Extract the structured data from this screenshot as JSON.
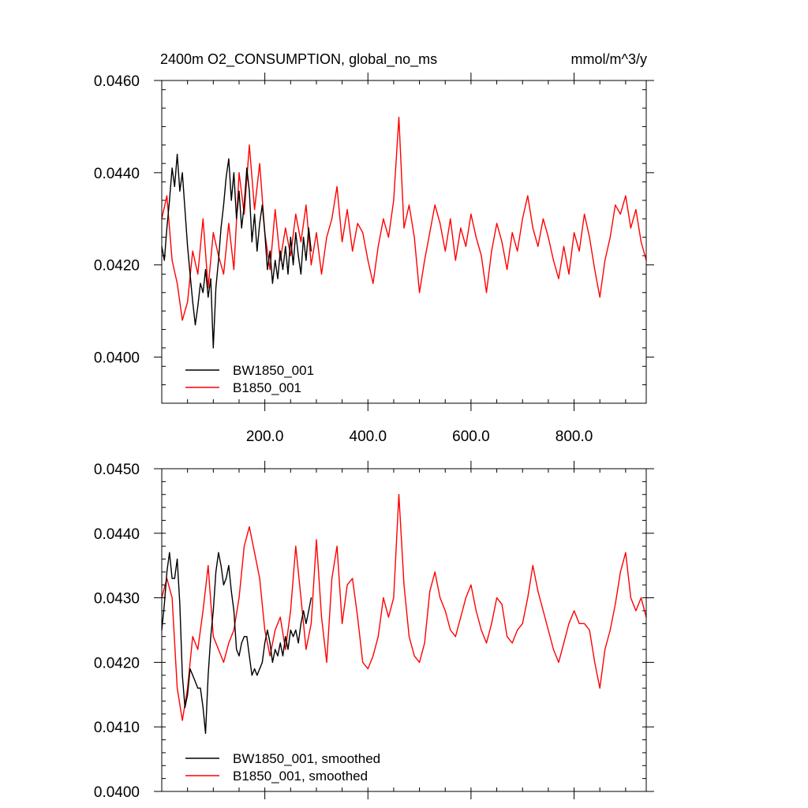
{
  "chart_data": [
    {
      "type": "line",
      "title": "2400m O2_CONSUMPTION, global_no_ms",
      "units": "mmol/m^3/y",
      "xlim": [
        0,
        940
      ],
      "ylim": [
        0.039,
        0.046
      ],
      "x_ticks": [
        "200.0",
        "400.0",
        "600.0",
        "800.0"
      ],
      "x_tick_values": [
        200,
        400,
        600,
        800
      ],
      "y_ticks": [
        "0.0400",
        "0.0420",
        "0.0440",
        "0.0460"
      ],
      "y_tick_values": [
        0.04,
        0.042,
        0.044,
        0.046
      ],
      "legend_position": "bottom-left",
      "grid": false,
      "series": [
        {
          "name": "BW1850_001",
          "color": "#000000",
          "x": [
            0,
            5,
            10,
            15,
            20,
            25,
            30,
            35,
            40,
            45,
            50,
            55,
            60,
            65,
            70,
            75,
            80,
            85,
            90,
            95,
            100,
            105,
            110,
            115,
            120,
            125,
            130,
            135,
            140,
            145,
            150,
            155,
            160,
            165,
            170,
            175,
            180,
            185,
            190,
            195,
            200,
            205,
            210,
            215,
            220,
            225,
            230,
            235,
            240,
            245,
            250,
            255,
            260,
            265,
            270,
            275,
            280,
            285,
            290
          ],
          "values": [
            0.0424,
            0.0421,
            0.0428,
            0.0434,
            0.0441,
            0.0437,
            0.0444,
            0.0436,
            0.044,
            0.0432,
            0.0424,
            0.0418,
            0.0412,
            0.0407,
            0.0411,
            0.0416,
            0.0414,
            0.0419,
            0.0413,
            0.0417,
            0.0402,
            0.0415,
            0.0421,
            0.0428,
            0.0433,
            0.0439,
            0.0443,
            0.0434,
            0.044,
            0.043,
            0.0436,
            0.0428,
            0.0433,
            0.0441,
            0.0436,
            0.0425,
            0.0431,
            0.0423,
            0.0429,
            0.0433,
            0.0427,
            0.0419,
            0.0423,
            0.0416,
            0.0421,
            0.0417,
            0.0423,
            0.0419,
            0.0424,
            0.0418,
            0.0426,
            0.042,
            0.0427,
            0.0422,
            0.0418,
            0.0426,
            0.0421,
            0.0428,
            0.0423
          ]
        },
        {
          "name": "B1850_001",
          "color": "#ff0000",
          "x": [
            0,
            10,
            20,
            30,
            40,
            50,
            60,
            70,
            80,
            90,
            100,
            110,
            120,
            130,
            140,
            150,
            160,
            170,
            180,
            190,
            200,
            210,
            220,
            230,
            240,
            250,
            260,
            270,
            280,
            290,
            300,
            310,
            320,
            330,
            340,
            350,
            360,
            370,
            380,
            390,
            400,
            410,
            420,
            430,
            440,
            450,
            460,
            470,
            480,
            490,
            500,
            510,
            520,
            530,
            540,
            550,
            560,
            570,
            580,
            590,
            600,
            610,
            620,
            630,
            640,
            650,
            660,
            670,
            680,
            690,
            700,
            710,
            720,
            730,
            740,
            750,
            760,
            770,
            780,
            790,
            800,
            810,
            820,
            830,
            840,
            850,
            860,
            870,
            880,
            890,
            900,
            910,
            920,
            930,
            940
          ],
          "values": [
            0.043,
            0.0435,
            0.0421,
            0.0416,
            0.0408,
            0.0412,
            0.0423,
            0.0418,
            0.043,
            0.0415,
            0.0427,
            0.0422,
            0.0418,
            0.0429,
            0.0419,
            0.044,
            0.0431,
            0.0446,
            0.0432,
            0.0442,
            0.0427,
            0.0419,
            0.0432,
            0.0421,
            0.0428,
            0.0422,
            0.0431,
            0.0425,
            0.0433,
            0.042,
            0.0427,
            0.0418,
            0.0426,
            0.043,
            0.0437,
            0.0425,
            0.0432,
            0.0423,
            0.0429,
            0.0427,
            0.0421,
            0.0416,
            0.0424,
            0.043,
            0.0426,
            0.0434,
            0.0452,
            0.0428,
            0.0433,
            0.0426,
            0.0414,
            0.0421,
            0.0427,
            0.0433,
            0.0429,
            0.0423,
            0.043,
            0.0421,
            0.0428,
            0.0424,
            0.0431,
            0.0426,
            0.0422,
            0.0414,
            0.0423,
            0.0429,
            0.0425,
            0.0419,
            0.0427,
            0.0423,
            0.043,
            0.0435,
            0.0428,
            0.0424,
            0.043,
            0.0426,
            0.0421,
            0.0417,
            0.0424,
            0.0418,
            0.0427,
            0.0423,
            0.0431,
            0.0426,
            0.0419,
            0.0413,
            0.0421,
            0.0426,
            0.0433,
            0.0431,
            0.0435,
            0.0428,
            0.0432,
            0.0425,
            0.0421
          ]
        }
      ]
    },
    {
      "type": "line",
      "xlim": [
        0,
        940
      ],
      "ylim": [
        0.04,
        0.045
      ],
      "x_tick_values": [
        200,
        400,
        600,
        800
      ],
      "y_ticks": [
        "0.0400",
        "0.0410",
        "0.0420",
        "0.0430",
        "0.0440",
        "0.0450"
      ],
      "y_tick_values": [
        0.04,
        0.041,
        0.042,
        0.043,
        0.044,
        0.045
      ],
      "legend_position": "bottom-left",
      "grid": false,
      "series": [
        {
          "name": "BW1850_001, smoothed",
          "color": "#000000",
          "x": [
            0,
            5,
            10,
            15,
            20,
            25,
            30,
            35,
            40,
            45,
            50,
            55,
            60,
            65,
            70,
            75,
            80,
            85,
            90,
            95,
            100,
            105,
            110,
            115,
            120,
            125,
            130,
            135,
            140,
            145,
            150,
            155,
            160,
            165,
            170,
            175,
            180,
            185,
            190,
            195,
            200,
            205,
            210,
            215,
            220,
            225,
            230,
            235,
            240,
            245,
            250,
            255,
            260,
            265,
            270,
            275,
            280,
            285,
            290
          ],
          "values": [
            0.0425,
            0.0429,
            0.0434,
            0.0437,
            0.0433,
            0.0433,
            0.0436,
            0.0429,
            0.0418,
            0.0413,
            0.0415,
            0.0419,
            0.0418,
            0.0417,
            0.0416,
            0.0416,
            0.0413,
            0.0409,
            0.0418,
            0.0424,
            0.0428,
            0.0434,
            0.0437,
            0.0435,
            0.0432,
            0.0433,
            0.0435,
            0.0431,
            0.0428,
            0.0422,
            0.0421,
            0.0423,
            0.0424,
            0.0424,
            0.0421,
            0.0418,
            0.0419,
            0.0418,
            0.0419,
            0.042,
            0.0423,
            0.0425,
            0.0423,
            0.042,
            0.0422,
            0.0421,
            0.0423,
            0.0421,
            0.0424,
            0.0422,
            0.0425,
            0.0424,
            0.0425,
            0.0423,
            0.0426,
            0.0428,
            0.0426,
            0.0428,
            0.043
          ]
        },
        {
          "name": "B1850_001, smoothed",
          "color": "#ff0000",
          "x": [
            0,
            10,
            20,
            30,
            40,
            50,
            60,
            70,
            80,
            90,
            100,
            110,
            120,
            130,
            140,
            150,
            160,
            170,
            180,
            190,
            200,
            210,
            220,
            230,
            240,
            250,
            260,
            270,
            280,
            290,
            300,
            310,
            320,
            330,
            340,
            350,
            360,
            370,
            380,
            390,
            400,
            410,
            420,
            430,
            440,
            450,
            460,
            470,
            480,
            490,
            500,
            510,
            520,
            530,
            540,
            550,
            560,
            570,
            580,
            590,
            600,
            610,
            620,
            630,
            640,
            650,
            660,
            670,
            680,
            690,
            700,
            710,
            720,
            730,
            740,
            750,
            760,
            770,
            780,
            790,
            800,
            810,
            820,
            830,
            840,
            850,
            860,
            870,
            880,
            890,
            900,
            910,
            920,
            930,
            940
          ],
          "values": [
            0.043,
            0.0433,
            0.043,
            0.0416,
            0.0411,
            0.0416,
            0.0424,
            0.0422,
            0.0428,
            0.0435,
            0.0424,
            0.0422,
            0.042,
            0.0423,
            0.0425,
            0.043,
            0.0438,
            0.0441,
            0.0437,
            0.0433,
            0.0425,
            0.0421,
            0.0425,
            0.0427,
            0.0422,
            0.0428,
            0.0438,
            0.043,
            0.0422,
            0.0426,
            0.0439,
            0.0427,
            0.042,
            0.0433,
            0.0438,
            0.0426,
            0.0432,
            0.0433,
            0.0427,
            0.042,
            0.0419,
            0.0421,
            0.0424,
            0.043,
            0.0427,
            0.043,
            0.0446,
            0.0432,
            0.0424,
            0.0421,
            0.042,
            0.0423,
            0.0431,
            0.0434,
            0.043,
            0.0428,
            0.0425,
            0.0424,
            0.0427,
            0.043,
            0.0432,
            0.0428,
            0.0425,
            0.0423,
            0.0426,
            0.043,
            0.0429,
            0.0424,
            0.0423,
            0.0425,
            0.0426,
            0.043,
            0.0435,
            0.0431,
            0.0428,
            0.0425,
            0.0422,
            0.042,
            0.0423,
            0.0426,
            0.0428,
            0.0426,
            0.0426,
            0.0425,
            0.042,
            0.0416,
            0.0422,
            0.0425,
            0.0429,
            0.0434,
            0.0437,
            0.043,
            0.0428,
            0.043,
            0.0427
          ]
        }
      ]
    }
  ]
}
